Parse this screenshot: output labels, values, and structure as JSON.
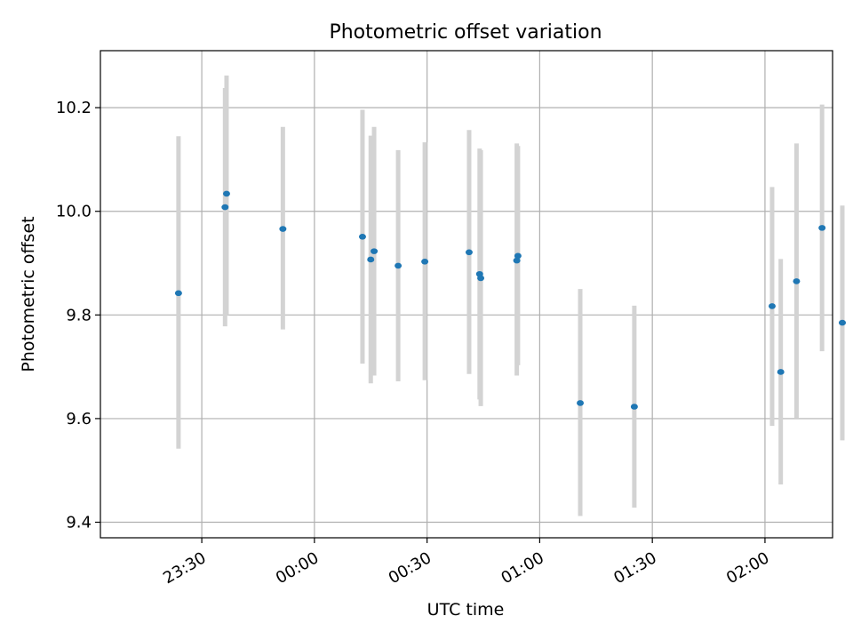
{
  "chart_data": {
    "type": "scatter",
    "title": "Photometric offset variation",
    "xlabel": "UTC time",
    "ylabel": "Photometric offset",
    "x_unit": "minutes",
    "xlim": [
      -57,
      138
    ],
    "ylim": [
      9.37,
      10.31
    ],
    "x_ticks": [
      {
        "value": -30,
        "label": "23:30"
      },
      {
        "value": 0,
        "label": "00:00"
      },
      {
        "value": 30,
        "label": "00:30"
      },
      {
        "value": 60,
        "label": "01:00"
      },
      {
        "value": 90,
        "label": "01:30"
      },
      {
        "value": 120,
        "label": "02:00"
      }
    ],
    "y_ticks": [
      {
        "value": 9.4,
        "label": "9.4"
      },
      {
        "value": 9.6,
        "label": "9.6"
      },
      {
        "value": 9.8,
        "label": "9.8"
      },
      {
        "value": 10.0,
        "label": "10.0"
      },
      {
        "value": 10.2,
        "label": "10.2"
      }
    ],
    "grid": true,
    "point_color": "#1f77b4",
    "errorbar_color": "#d3d3d3",
    "points": [
      {
        "x": -36.2,
        "y": 9.842,
        "lo": 9.542,
        "hi": 10.145
      },
      {
        "x": -23.8,
        "y": 10.008,
        "lo": 9.778,
        "hi": 10.238
      },
      {
        "x": -23.4,
        "y": 10.034,
        "lo": 9.8,
        "hi": 10.262
      },
      {
        "x": -8.4,
        "y": 9.966,
        "lo": 9.772,
        "hi": 10.163
      },
      {
        "x": 12.8,
        "y": 9.951,
        "lo": 9.706,
        "hi": 10.196
      },
      {
        "x": 15.0,
        "y": 9.907,
        "lo": 9.668,
        "hi": 10.146
      },
      {
        "x": 15.9,
        "y": 9.923,
        "lo": 9.683,
        "hi": 10.163
      },
      {
        "x": 22.3,
        "y": 9.895,
        "lo": 9.672,
        "hi": 10.118
      },
      {
        "x": 29.4,
        "y": 9.903,
        "lo": 9.674,
        "hi": 10.133
      },
      {
        "x": 41.2,
        "y": 9.921,
        "lo": 9.686,
        "hi": 10.157
      },
      {
        "x": 44.0,
        "y": 9.879,
        "lo": 9.637,
        "hi": 10.121
      },
      {
        "x": 44.3,
        "y": 9.871,
        "lo": 9.624,
        "hi": 10.118
      },
      {
        "x": 53.9,
        "y": 9.905,
        "lo": 9.683,
        "hi": 10.131
      },
      {
        "x": 54.2,
        "y": 9.914,
        "lo": 9.703,
        "hi": 10.126
      },
      {
        "x": 70.8,
        "y": 9.63,
        "lo": 9.412,
        "hi": 9.85
      },
      {
        "x": 85.2,
        "y": 9.623,
        "lo": 9.428,
        "hi": 9.818
      },
      {
        "x": 121.9,
        "y": 9.817,
        "lo": 9.586,
        "hi": 10.047
      },
      {
        "x": 124.2,
        "y": 9.69,
        "lo": 9.473,
        "hi": 9.908
      },
      {
        "x": 128.4,
        "y": 9.865,
        "lo": 9.6,
        "hi": 10.131
      },
      {
        "x": 135.2,
        "y": 9.968,
        "lo": 9.73,
        "hi": 10.206
      },
      {
        "x": 140.6,
        "y": 9.785,
        "lo": 9.558,
        "hi": 10.011
      }
    ]
  }
}
